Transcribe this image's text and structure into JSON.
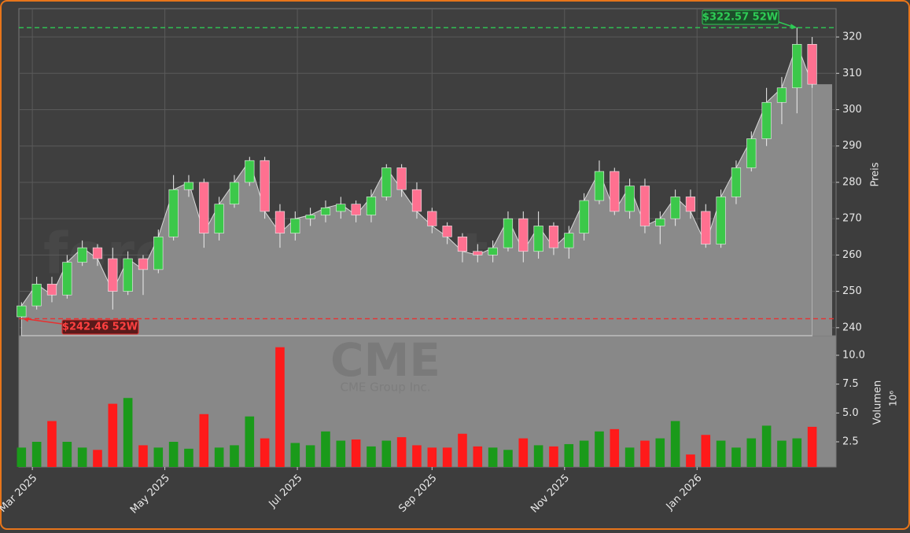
{
  "chart_data": {
    "type": "candlestick",
    "watermark": "forexsignale.trade",
    "logo_text": "CME",
    "logo_subtext": "CME Group Inc.",
    "y_label": "Preis",
    "y2_label": "Volumen",
    "y2_offset_label": "10⁶",
    "x": [
      -5,
      2,
      9,
      16,
      23,
      30,
      37,
      44,
      51,
      58,
      65,
      72,
      79,
      86,
      93,
      100,
      107,
      114,
      121,
      128,
      135,
      142,
      149,
      156,
      163,
      170,
      177,
      184,
      191,
      198,
      205,
      212,
      219,
      226,
      233,
      240,
      247,
      254,
      261,
      268,
      275,
      282,
      289,
      296,
      303,
      310,
      317,
      324,
      331,
      338,
      345,
      352,
      359
    ],
    "open": [
      243,
      246,
      252,
      249,
      258,
      262,
      259,
      250,
      259,
      256,
      265,
      278,
      280,
      266,
      274,
      280,
      286,
      272,
      266,
      270,
      271,
      272,
      274,
      271,
      276,
      284,
      278,
      272,
      268,
      265,
      261,
      260,
      262,
      270,
      261,
      268,
      262,
      266,
      275,
      283,
      272,
      279,
      268,
      270,
      276,
      272,
      263,
      276,
      284,
      292,
      302,
      306,
      318
    ],
    "high": [
      247,
      254,
      254,
      260,
      264,
      263,
      262,
      261,
      260,
      267,
      282,
      282,
      281,
      276,
      282,
      287,
      287,
      274,
      272,
      273,
      275,
      276,
      275,
      278,
      285,
      285,
      280,
      273,
      269,
      266,
      263,
      264,
      272,
      272,
      272,
      269,
      268,
      277,
      286,
      284,
      281,
      281,
      272,
      278,
      278,
      274,
      278,
      286,
      294,
      306,
      309,
      322.57,
      320
    ],
    "low": [
      242.46,
      245,
      247,
      248,
      257,
      257,
      245,
      249,
      249,
      255,
      264,
      276,
      262,
      264,
      273,
      279,
      270,
      262,
      264,
      268,
      269,
      270,
      269,
      269,
      275,
      276,
      270,
      266,
      263,
      258,
      258,
      258,
      261,
      258,
      259,
      260,
      259,
      264,
      274,
      271,
      270,
      266,
      263,
      268,
      270,
      262,
      262,
      274,
      283,
      290,
      296,
      299,
      306
    ],
    "close": [
      246,
      252,
      249,
      258,
      262,
      259,
      250,
      259,
      256,
      265,
      278,
      280,
      266,
      274,
      280,
      286,
      272,
      266,
      270,
      271,
      273,
      274,
      271,
      276,
      284,
      278,
      272,
      268,
      265,
      261,
      260,
      262,
      270,
      261,
      268,
      262,
      266,
      275,
      283,
      272,
      279,
      268,
      270,
      276,
      272,
      263,
      276,
      284,
      292,
      302,
      306,
      318,
      307
    ],
    "volume": [
      2.0,
      2.5,
      4.3,
      2.5,
      2.0,
      1.8,
      5.8,
      6.3,
      2.2,
      2.0,
      2.5,
      1.9,
      4.9,
      2.0,
      2.2,
      4.7,
      2.8,
      10.7,
      2.4,
      2.2,
      3.4,
      2.6,
      2.7,
      2.1,
      2.6,
      2.9,
      2.2,
      2.0,
      2.0,
      3.2,
      2.1,
      2.0,
      1.8,
      2.8,
      2.2,
      2.1,
      2.3,
      2.6,
      3.4,
      3.6,
      2.0,
      2.6,
      2.8,
      4.3,
      1.4,
      3.1,
      2.6,
      2.0,
      2.8,
      3.9,
      2.6,
      2.8,
      3.8
    ],
    "up_color": "#3cc84a",
    "down_color": "#ff7090",
    "volume_up_color": "#1a9a1a",
    "volume_down_color": "#ff1a1a",
    "area_color": "#8a8a8a",
    "xlim": [
      -6.2,
      370
    ],
    "xticks": [
      {
        "value": 0,
        "label": "Mar 2025"
      },
      {
        "value": 61,
        "label": "May 2025"
      },
      {
        "value": 122,
        "label": "Jul 2025"
      },
      {
        "value": 184,
        "label": "Sep 2025"
      },
      {
        "value": 245,
        "label": "Nov 2025"
      },
      {
        "value": 306,
        "label": "Jan 2026"
      }
    ],
    "ylim": [
      237.8,
      327.8
    ],
    "yticks": [
      240,
      250,
      260,
      270,
      280,
      290,
      300,
      310,
      320
    ],
    "y2lim": [
      0.32,
      11.7
    ],
    "y2ticks": [
      2.5,
      {
        "value": 5,
        "label": "5.0"
      },
      7.5,
      {
        "value": 10,
        "label": "10.0"
      }
    ],
    "grid": true,
    "high_line": {
      "value": 322.57,
      "label": "$322.57 52W",
      "color": "#2ecc55"
    },
    "low_line": {
      "value": 242.46,
      "label": "$242.46 52W",
      "color": "#e83030"
    }
  }
}
